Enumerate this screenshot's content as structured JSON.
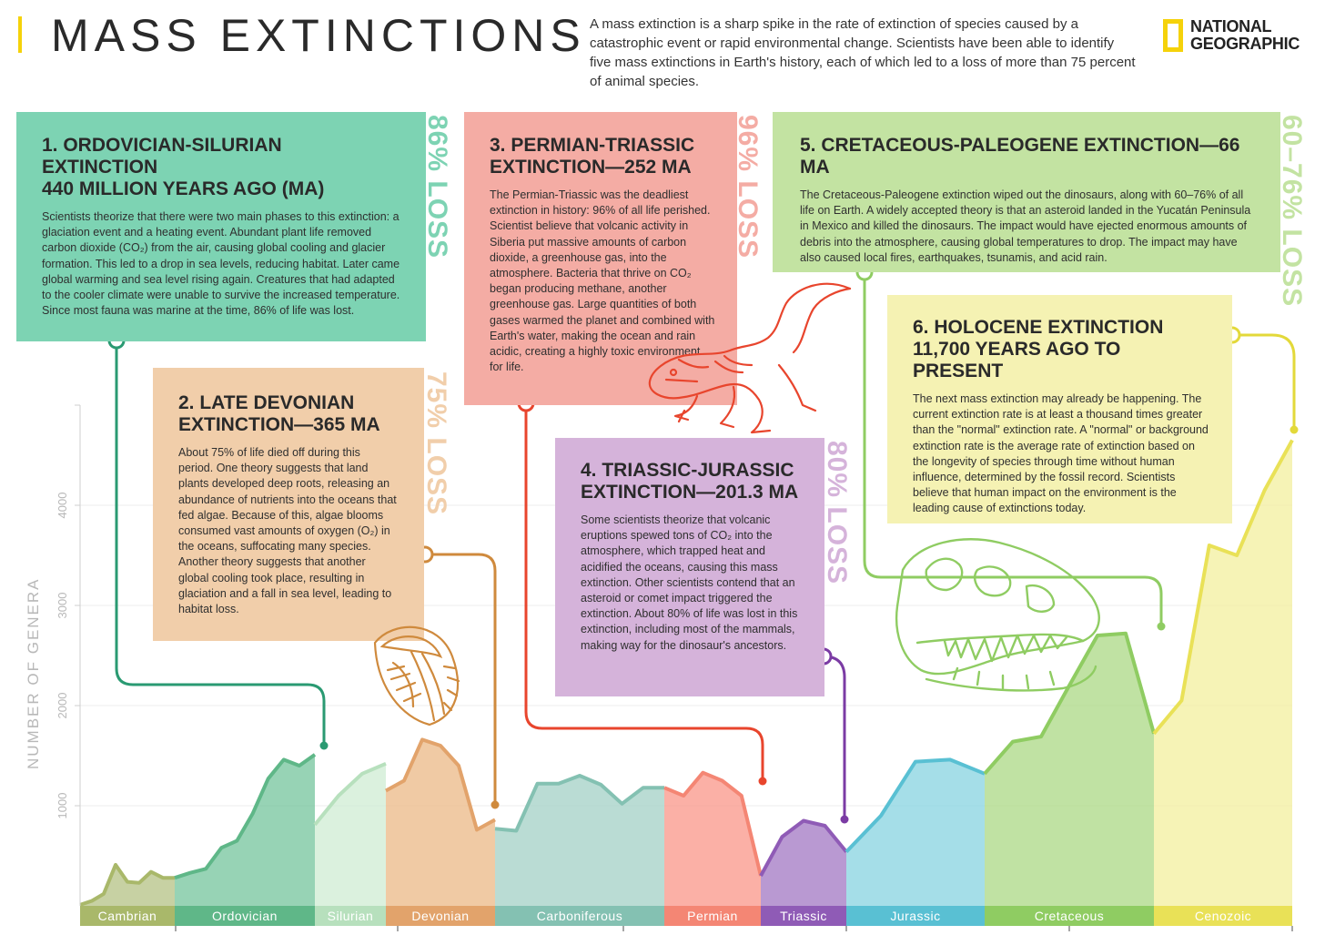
{
  "header": {
    "title": "MASS EXTINCTIONS",
    "intro": "A mass extinction is a sharp spike in the rate of extinction of species caused by a catastrophic event or rapid environmental change. Scientists have been able to identify five mass extinctions in Earth's history, each of which led to a loss of more than 75 percent of animal species.",
    "logo_line1": "NATIONAL",
    "logo_line2": "GEOGRAPHIC"
  },
  "colors": {
    "green_box": "#7dd3b3",
    "pink_box": "#f4aca4",
    "lime_box": "#c3e3a2",
    "peach_box": "#f1ceaa",
    "purple_box": "#d5b3da",
    "yellow_box": "#f5f2b3"
  },
  "boxes": {
    "ordovician": {
      "title": "1. ORDOVICIAN-SILURIAN EXTINCTION\n440 MILLION YEARS AGO (MA)",
      "body": "Scientists theorize that there were two main phases to this extinction: a glaciation event and a heating event. Abundant plant life removed carbon dioxide (CO₂) from the air, causing global cooling and glacier formation. This led to a drop in sea levels, reducing habitat. Later came global warming and sea level rising again. Creatures that had adapted to the cooler climate were unable to survive the increased temperature. Since most fauna was marine at the time, 86% of life was lost.",
      "loss": "86% LOSS"
    },
    "devonian": {
      "title": "2. LATE DEVONIAN\nEXTINCTION—365 MA",
      "body": "About 75% of life died off during this period. One theory suggests that land plants developed deep roots, releasing an abundance of nutrients into the oceans that fed algae. Because of this, algae blooms consumed vast amounts of oxygen (O₂) in the oceans, suffocating many species. Another theory suggests that another global cooling took place, resulting in glaciation and a fall in sea level, leading to habitat loss.",
      "loss": "75% LOSS"
    },
    "permian": {
      "title": "3. PERMIAN-TRIASSIC\nEXTINCTION—252 MA",
      "body": "The Permian-Triassic was the deadliest extinction in history: 96% of all life perished. Scientist believe that volcanic activity in Siberia put massive amounts of carbon dioxide, a greenhouse gas, into the atmosphere. Bacteria that thrive on CO₂ began producing methane, another greenhouse gas. Large quantities of both gases warmed the planet and combined with Earth's water, making the ocean and rain acidic, creating a highly toxic environment for life.",
      "loss": "96% LOSS"
    },
    "triassic": {
      "title": "4. TRIASSIC-JURASSIC\nEXTINCTION—201.3 MA",
      "body": "Some scientists theorize that volcanic eruptions spewed tons of CO₂ into the atmosphere, which trapped heat and acidified the oceans, causing this mass extinction. Other scientists contend that an asteroid or comet impact triggered the extinction. About 80% of life was lost in this extinction, including most of the mammals, making way for the dinosaur's ancestors.",
      "loss": "80% LOSS"
    },
    "cretaceous": {
      "title": "5. CRETACEOUS-PALEOGENE EXTINCTION—66 MA",
      "body": "The Cretaceous-Paleogene extinction wiped out the dinosaurs, along with 60–76% of all life on Earth. A widely accepted theory is that an asteroid landed in the Yucatán Peninsula in Mexico and killed the dinosaurs. The impact would have ejected enormous amounts of debris into the atmosphere, causing global temperatures to drop. The impact may have also caused local fires, earthquakes, tsunamis, and acid rain.",
      "loss": "60–76% LOSS"
    },
    "holocene": {
      "title": "6. HOLOCENE EXTINCTION\n11,700 YEARS AGO TO PRESENT",
      "body": "The next mass extinction may already be happening. The current extinction rate is at least a thousand times greater than the \"normal\" extinction rate. A \"normal\" or background extinction rate is the average rate of extinction based on the longevity of species through time without human influence, determined by the fossil record. Scientists believe that human impact on the environment is the leading cause of extinctions today."
    }
  },
  "chart_data": {
    "type": "area",
    "ylabel": "NUMBER OF GENERA",
    "yticks": [
      1000,
      2000,
      3000,
      4000
    ],
    "ylim": [
      0,
      5000
    ],
    "x_order": "oldest to present (left to right)",
    "periods": [
      {
        "name": "Cambrian",
        "color": "#b2bf7f",
        "band": "#a9b86a",
        "values": [
          10,
          50,
          120,
          410,
          240,
          230,
          340,
          280,
          280
        ]
      },
      {
        "name": "Ordovician",
        "color": "#6fc299",
        "band": "#5fb788",
        "values": [
          280,
          330,
          370,
          580,
          650,
          920,
          1270,
          1460,
          1400,
          1510
        ]
      },
      {
        "name": "Silurian",
        "color": "#cdebd1",
        "band": "#b7e0bd",
        "values": [
          810,
          1100,
          1320,
          1420
        ]
      },
      {
        "name": "Devonian",
        "color": "#eab681",
        "band": "#e2a36b",
        "values": [
          1150,
          1250,
          1660,
          1600,
          1400,
          760,
          860
        ]
      },
      {
        "name": "Carboniferous",
        "color": "#9fcfc3",
        "band": "#84c1b2",
        "values": [
          770,
          750,
          1220,
          1220,
          1300,
          1210,
          1020,
          1180,
          1180
        ]
      },
      {
        "name": "Permian",
        "color": "#f99283",
        "band": "#f48674",
        "values": [
          1180,
          1100,
          1330,
          1250,
          1100,
          300
        ]
      },
      {
        "name": "Triassic",
        "color": "#9e71c1",
        "band": "#8f5bb6",
        "values": [
          300,
          690,
          850,
          800,
          540
        ]
      },
      {
        "name": "Jurassic",
        "color": "#82d1df",
        "band": "#59c0d3",
        "values": [
          540,
          900,
          1440,
          1460,
          1320
        ]
      },
      {
        "name": "Cretaceous",
        "color": "#a8d77f",
        "band": "#8fcc62",
        "values": [
          1320,
          1640,
          1690,
          2200,
          2700,
          2720,
          1720
        ]
      },
      {
        "name": "Cenozoic",
        "color": "#f3ef9a",
        "band": "#e9e157",
        "values": [
          1720,
          2050,
          3600,
          3500,
          4150,
          4650
        ]
      }
    ]
  }
}
